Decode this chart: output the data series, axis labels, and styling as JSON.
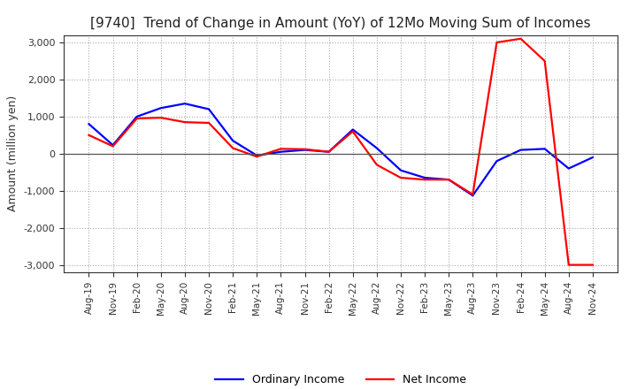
{
  "title": "[9740]  Trend of Change in Amount (YoY) of 12Mo Moving Sum of Incomes",
  "ylabel": "Amount (million yen)",
  "ylim": [
    -3200,
    3200
  ],
  "yticks": [
    -3000,
    -2000,
    -1000,
    0,
    1000,
    2000,
    3000
  ],
  "background_color": "#ffffff",
  "grid_color": "#999999",
  "legend_labels": [
    "Ordinary Income",
    "Net Income"
  ],
  "line_colors": [
    "#0000ff",
    "#ff0000"
  ],
  "x_labels": [
    "Aug-19",
    "Nov-19",
    "Feb-20",
    "May-20",
    "Aug-20",
    "Nov-20",
    "Feb-21",
    "May-21",
    "Aug-21",
    "Nov-21",
    "Feb-22",
    "May-22",
    "Aug-22",
    "Nov-22",
    "Feb-23",
    "May-23",
    "Aug-23",
    "Nov-23",
    "Feb-24",
    "May-24",
    "Aug-24",
    "Nov-24"
  ],
  "ordinary_income": [
    800,
    230,
    1000,
    1230,
    1350,
    1200,
    350,
    -50,
    50,
    100,
    50,
    650,
    150,
    -450,
    -650,
    -700,
    -1130,
    -200,
    100,
    130,
    -400,
    -100
  ],
  "net_income": [
    500,
    200,
    950,
    970,
    850,
    830,
    150,
    -80,
    130,
    120,
    50,
    600,
    -300,
    -650,
    -700,
    -700,
    -1100,
    3000,
    3100,
    2500,
    -3000,
    -3000
  ]
}
